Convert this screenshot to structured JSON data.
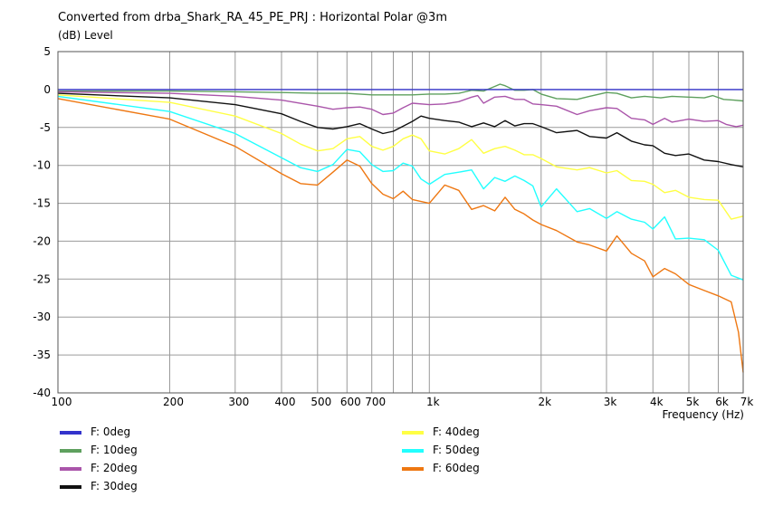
{
  "chart_data": {
    "type": "line",
    "title": "Converted from drba_Shark_RA_45_PE_PRJ : Horizontal Polar @3m",
    "ylabel": "(dB)  Level",
    "xlabel": "Frequency  (Hz)",
    "xscale": "log",
    "xlim": [
      100,
      7000
    ],
    "ylim": [
      -40,
      5
    ],
    "grid": true,
    "legend_position": "bottom",
    "x_ticks": [
      {
        "value": 100,
        "label": "100"
      },
      {
        "value": 200,
        "label": "200"
      },
      {
        "value": 300,
        "label": "300"
      },
      {
        "value": 400,
        "label": "400"
      },
      {
        "value": 500,
        "label": "500"
      },
      {
        "value": 600,
        "label": "600"
      },
      {
        "value": 700,
        "label": "700"
      },
      {
        "value": 1000,
        "label": "1k"
      },
      {
        "value": 2000,
        "label": "2k"
      },
      {
        "value": 3000,
        "label": "3k"
      },
      {
        "value": 4000,
        "label": "4k"
      },
      {
        "value": 5000,
        "label": "5k"
      },
      {
        "value": 6000,
        "label": "6k"
      },
      {
        "value": 7000,
        "label": "7k"
      }
    ],
    "y_ticks": [
      5,
      0,
      -5,
      -10,
      -15,
      -20,
      -25,
      -30,
      -35,
      -40
    ],
    "series": [
      {
        "name": "F: 0deg",
        "color": "#3333cc",
        "points": [
          [
            100,
            0
          ],
          [
            7000,
            0
          ]
        ]
      },
      {
        "name": "F: 10deg",
        "color": "#5ea05e",
        "points": [
          [
            100,
            -0.2
          ],
          [
            200,
            -0.2
          ],
          [
            300,
            -0.3
          ],
          [
            400,
            -0.4
          ],
          [
            500,
            -0.5
          ],
          [
            600,
            -0.5
          ],
          [
            700,
            -0.7
          ],
          [
            800,
            -0.7
          ],
          [
            900,
            -0.7
          ],
          [
            1000,
            -0.6
          ],
          [
            1100,
            -0.6
          ],
          [
            1200,
            -0.5
          ],
          [
            1300,
            -0.1
          ],
          [
            1400,
            -0.2
          ],
          [
            1500,
            0.4
          ],
          [
            1550,
            0.7
          ],
          [
            1600,
            0.5
          ],
          [
            1700,
            -0.1
          ],
          [
            1800,
            -0.1
          ],
          [
            1900,
            0
          ],
          [
            2000,
            -0.6
          ],
          [
            2200,
            -1.2
          ],
          [
            2500,
            -1.3
          ],
          [
            2700,
            -0.9
          ],
          [
            3000,
            -0.4
          ],
          [
            3200,
            -0.5
          ],
          [
            3500,
            -1.1
          ],
          [
            3800,
            -0.9
          ],
          [
            4200,
            -1.1
          ],
          [
            4500,
            -0.9
          ],
          [
            5000,
            -1
          ],
          [
            5500,
            -1.1
          ],
          [
            5800,
            -0.8
          ],
          [
            6200,
            -1.3
          ],
          [
            6600,
            -1.4
          ],
          [
            7000,
            -1.5
          ]
        ]
      },
      {
        "name": "F: 20deg",
        "color": "#aa55aa",
        "points": [
          [
            100,
            -0.3
          ],
          [
            200,
            -0.5
          ],
          [
            300,
            -0.9
          ],
          [
            400,
            -1.4
          ],
          [
            500,
            -2.2
          ],
          [
            550,
            -2.6
          ],
          [
            600,
            -2.4
          ],
          [
            650,
            -2.3
          ],
          [
            700,
            -2.6
          ],
          [
            750,
            -3.3
          ],
          [
            800,
            -3.1
          ],
          [
            850,
            -2.4
          ],
          [
            900,
            -1.8
          ],
          [
            1000,
            -2
          ],
          [
            1100,
            -1.9
          ],
          [
            1200,
            -1.6
          ],
          [
            1300,
            -1
          ],
          [
            1350,
            -0.8
          ],
          [
            1400,
            -1.8
          ],
          [
            1500,
            -1
          ],
          [
            1600,
            -0.9
          ],
          [
            1700,
            -1.3
          ],
          [
            1800,
            -1.3
          ],
          [
            1900,
            -1.9
          ],
          [
            2000,
            -2
          ],
          [
            2200,
            -2.2
          ],
          [
            2500,
            -3.3
          ],
          [
            2700,
            -2.8
          ],
          [
            3000,
            -2.4
          ],
          [
            3200,
            -2.5
          ],
          [
            3500,
            -3.8
          ],
          [
            3800,
            -4
          ],
          [
            4000,
            -4.6
          ],
          [
            4300,
            -3.8
          ],
          [
            4500,
            -4.3
          ],
          [
            5000,
            -3.9
          ],
          [
            5500,
            -4.2
          ],
          [
            6000,
            -4.1
          ],
          [
            6300,
            -4.6
          ],
          [
            6700,
            -4.9
          ],
          [
            7000,
            -4.7
          ]
        ]
      },
      {
        "name": "F: 30deg",
        "color": "#111111",
        "points": [
          [
            100,
            -0.5
          ],
          [
            200,
            -1.1
          ],
          [
            300,
            -2
          ],
          [
            400,
            -3.2
          ],
          [
            450,
            -4.2
          ],
          [
            500,
            -5
          ],
          [
            550,
            -5.2
          ],
          [
            600,
            -4.9
          ],
          [
            650,
            -4.5
          ],
          [
            700,
            -5.2
          ],
          [
            750,
            -5.8
          ],
          [
            800,
            -5.5
          ],
          [
            900,
            -4.2
          ],
          [
            950,
            -3.5
          ],
          [
            1000,
            -3.8
          ],
          [
            1100,
            -4.1
          ],
          [
            1200,
            -4.3
          ],
          [
            1300,
            -4.9
          ],
          [
            1400,
            -4.4
          ],
          [
            1500,
            -4.9
          ],
          [
            1600,
            -4.1
          ],
          [
            1700,
            -4.8
          ],
          [
            1800,
            -4.5
          ],
          [
            1900,
            -4.5
          ],
          [
            2000,
            -4.9
          ],
          [
            2200,
            -5.7
          ],
          [
            2500,
            -5.4
          ],
          [
            2700,
            -6.2
          ],
          [
            3000,
            -6.4
          ],
          [
            3200,
            -5.7
          ],
          [
            3500,
            -6.8
          ],
          [
            3800,
            -7.3
          ],
          [
            4000,
            -7.4
          ],
          [
            4300,
            -8.4
          ],
          [
            4600,
            -8.7
          ],
          [
            5000,
            -8.5
          ],
          [
            5500,
            -9.3
          ],
          [
            6000,
            -9.5
          ],
          [
            6500,
            -9.9
          ],
          [
            7000,
            -10.2
          ]
        ]
      },
      {
        "name": "F: 40deg",
        "color": "#ffff44",
        "points": [
          [
            100,
            -0.7
          ],
          [
            200,
            -1.7
          ],
          [
            300,
            -3.5
          ],
          [
            400,
            -5.8
          ],
          [
            450,
            -7.2
          ],
          [
            500,
            -8.1
          ],
          [
            550,
            -7.8
          ],
          [
            600,
            -6.5
          ],
          [
            650,
            -6.2
          ],
          [
            700,
            -7.5
          ],
          [
            750,
            -8
          ],
          [
            800,
            -7.5
          ],
          [
            850,
            -6.5
          ],
          [
            900,
            -6
          ],
          [
            950,
            -6.5
          ],
          [
            1000,
            -8.1
          ],
          [
            1100,
            -8.5
          ],
          [
            1200,
            -7.8
          ],
          [
            1300,
            -6.6
          ],
          [
            1400,
            -8.4
          ],
          [
            1500,
            -7.8
          ],
          [
            1600,
            -7.5
          ],
          [
            1700,
            -8
          ],
          [
            1800,
            -8.6
          ],
          [
            1900,
            -8.6
          ],
          [
            2000,
            -9.1
          ],
          [
            2200,
            -10.2
          ],
          [
            2500,
            -10.6
          ],
          [
            2700,
            -10.3
          ],
          [
            3000,
            -11
          ],
          [
            3200,
            -10.7
          ],
          [
            3500,
            -12
          ],
          [
            3800,
            -12.1
          ],
          [
            4000,
            -12.5
          ],
          [
            4300,
            -13.6
          ],
          [
            4600,
            -13.3
          ],
          [
            5000,
            -14.2
          ],
          [
            5500,
            -14.5
          ],
          [
            6000,
            -14.6
          ],
          [
            6500,
            -17.1
          ],
          [
            7000,
            -16.7
          ]
        ]
      },
      {
        "name": "F: 50deg",
        "color": "#22ffff",
        "points": [
          [
            100,
            -0.9
          ],
          [
            200,
            -2.9
          ],
          [
            300,
            -5.8
          ],
          [
            400,
            -9
          ],
          [
            450,
            -10.3
          ],
          [
            500,
            -10.8
          ],
          [
            550,
            -9.9
          ],
          [
            600,
            -7.9
          ],
          [
            650,
            -8.2
          ],
          [
            700,
            -9.9
          ],
          [
            750,
            -10.8
          ],
          [
            800,
            -10.7
          ],
          [
            850,
            -9.7
          ],
          [
            900,
            -10.1
          ],
          [
            950,
            -11.8
          ],
          [
            1000,
            -12.5
          ],
          [
            1100,
            -11.2
          ],
          [
            1200,
            -10.9
          ],
          [
            1300,
            -10.6
          ],
          [
            1400,
            -13.1
          ],
          [
            1500,
            -11.6
          ],
          [
            1600,
            -12.1
          ],
          [
            1700,
            -11.4
          ],
          [
            1800,
            -12
          ],
          [
            1900,
            -12.7
          ],
          [
            2000,
            -15.5
          ],
          [
            2200,
            -13.1
          ],
          [
            2500,
            -16.1
          ],
          [
            2700,
            -15.7
          ],
          [
            3000,
            -17
          ],
          [
            3200,
            -16.1
          ],
          [
            3500,
            -17.1
          ],
          [
            3800,
            -17.5
          ],
          [
            4000,
            -18.4
          ],
          [
            4300,
            -16.8
          ],
          [
            4600,
            -19.7
          ],
          [
            5000,
            -19.6
          ],
          [
            5500,
            -19.8
          ],
          [
            6000,
            -21.2
          ],
          [
            6500,
            -24.5
          ],
          [
            7000,
            -25.1
          ]
        ]
      },
      {
        "name": "F: 60deg",
        "color": "#ee7711",
        "points": [
          [
            100,
            -1.2
          ],
          [
            200,
            -3.9
          ],
          [
            300,
            -7.5
          ],
          [
            400,
            -11.1
          ],
          [
            450,
            -12.4
          ],
          [
            500,
            -12.6
          ],
          [
            550,
            -10.9
          ],
          [
            600,
            -9.3
          ],
          [
            650,
            -10.1
          ],
          [
            700,
            -12.4
          ],
          [
            750,
            -13.8
          ],
          [
            800,
            -14.4
          ],
          [
            850,
            -13.4
          ],
          [
            900,
            -14.5
          ],
          [
            1000,
            -15
          ],
          [
            1100,
            -12.6
          ],
          [
            1200,
            -13.3
          ],
          [
            1300,
            -15.8
          ],
          [
            1400,
            -15.3
          ],
          [
            1500,
            -16
          ],
          [
            1600,
            -14.2
          ],
          [
            1700,
            -15.8
          ],
          [
            1800,
            -16.4
          ],
          [
            1900,
            -17.2
          ],
          [
            2000,
            -17.8
          ],
          [
            2200,
            -18.6
          ],
          [
            2500,
            -20.1
          ],
          [
            2700,
            -20.5
          ],
          [
            3000,
            -21.3
          ],
          [
            3200,
            -19.3
          ],
          [
            3500,
            -21.6
          ],
          [
            3800,
            -22.6
          ],
          [
            4000,
            -24.7
          ],
          [
            4300,
            -23.6
          ],
          [
            4600,
            -24.3
          ],
          [
            5000,
            -25.7
          ],
          [
            5500,
            -26.5
          ],
          [
            6000,
            -27.2
          ],
          [
            6500,
            -28
          ],
          [
            6800,
            -32
          ],
          [
            7000,
            -37.3
          ]
        ]
      }
    ]
  }
}
